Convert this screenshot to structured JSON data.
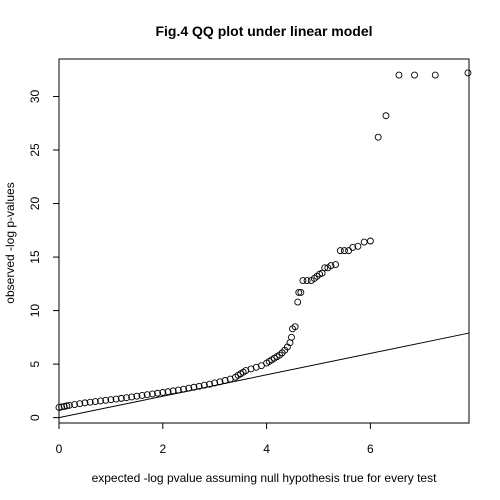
{
  "chart_data": {
    "type": "scatter",
    "title": "Fig.4 QQ plot under linear model",
    "xlabel": "expected -log pvalue assuming null hypothesis true for every test",
    "ylabel": "observed -log p-values",
    "xlim": [
      0,
      7.9
    ],
    "ylim": [
      -0.5,
      33.5
    ],
    "xticks": [
      0,
      2,
      4,
      6
    ],
    "yticks": [
      0,
      5,
      10,
      15,
      20,
      25,
      30
    ],
    "grid": false,
    "legend": "none",
    "reference_line": {
      "slope": 1,
      "intercept": 0
    },
    "points": [
      [
        0.0,
        0.95
      ],
      [
        0.05,
        1.0
      ],
      [
        0.1,
        1.05
      ],
      [
        0.15,
        1.1
      ],
      [
        0.2,
        1.15
      ],
      [
        0.3,
        1.22
      ],
      [
        0.4,
        1.3
      ],
      [
        0.5,
        1.38
      ],
      [
        0.6,
        1.44
      ],
      [
        0.7,
        1.5
      ],
      [
        0.8,
        1.56
      ],
      [
        0.9,
        1.62
      ],
      [
        1.0,
        1.68
      ],
      [
        1.1,
        1.74
      ],
      [
        1.2,
        1.8
      ],
      [
        1.3,
        1.86
      ],
      [
        1.4,
        1.93
      ],
      [
        1.5,
        2.0
      ],
      [
        1.6,
        2.07
      ],
      [
        1.7,
        2.14
      ],
      [
        1.8,
        2.21
      ],
      [
        1.9,
        2.28
      ],
      [
        2.0,
        2.35
      ],
      [
        2.1,
        2.42
      ],
      [
        2.2,
        2.5
      ],
      [
        2.3,
        2.58
      ],
      [
        2.4,
        2.66
      ],
      [
        2.5,
        2.75
      ],
      [
        2.6,
        2.84
      ],
      [
        2.7,
        2.93
      ],
      [
        2.8,
        3.03
      ],
      [
        2.9,
        3.13
      ],
      [
        3.0,
        3.24
      ],
      [
        3.1,
        3.35
      ],
      [
        3.2,
        3.47
      ],
      [
        3.3,
        3.6
      ],
      [
        3.4,
        3.78
      ],
      [
        3.45,
        3.95
      ],
      [
        3.5,
        4.1
      ],
      [
        3.55,
        4.25
      ],
      [
        3.6,
        4.4
      ],
      [
        3.7,
        4.55
      ],
      [
        3.8,
        4.7
      ],
      [
        3.9,
        4.85
      ],
      [
        4.0,
        5.1
      ],
      [
        4.05,
        5.25
      ],
      [
        4.1,
        5.4
      ],
      [
        4.15,
        5.55
      ],
      [
        4.2,
        5.7
      ],
      [
        4.25,
        5.85
      ],
      [
        4.3,
        6.05
      ],
      [
        4.35,
        6.3
      ],
      [
        4.4,
        6.6
      ],
      [
        4.45,
        7.0
      ],
      [
        4.48,
        7.5
      ],
      [
        4.5,
        8.3
      ],
      [
        4.55,
        8.5
      ],
      [
        4.6,
        10.8
      ],
      [
        4.62,
        11.7
      ],
      [
        4.66,
        11.7
      ],
      [
        4.7,
        12.8
      ],
      [
        4.78,
        12.8
      ],
      [
        4.86,
        12.8
      ],
      [
        4.92,
        13.0
      ],
      [
        4.97,
        13.2
      ],
      [
        5.02,
        13.4
      ],
      [
        5.07,
        13.5
      ],
      [
        5.12,
        14.0
      ],
      [
        5.18,
        14.0
      ],
      [
        5.24,
        14.2
      ],
      [
        5.33,
        14.3
      ],
      [
        5.42,
        15.6
      ],
      [
        5.5,
        15.6
      ],
      [
        5.58,
        15.6
      ],
      [
        5.66,
        15.9
      ],
      [
        5.76,
        16.0
      ],
      [
        5.88,
        16.4
      ],
      [
        6.0,
        16.5
      ],
      [
        6.15,
        26.2
      ],
      [
        6.3,
        28.2
      ],
      [
        6.55,
        32.0
      ],
      [
        6.85,
        32.0
      ],
      [
        7.25,
        32.0
      ],
      [
        7.88,
        32.2
      ]
    ]
  }
}
